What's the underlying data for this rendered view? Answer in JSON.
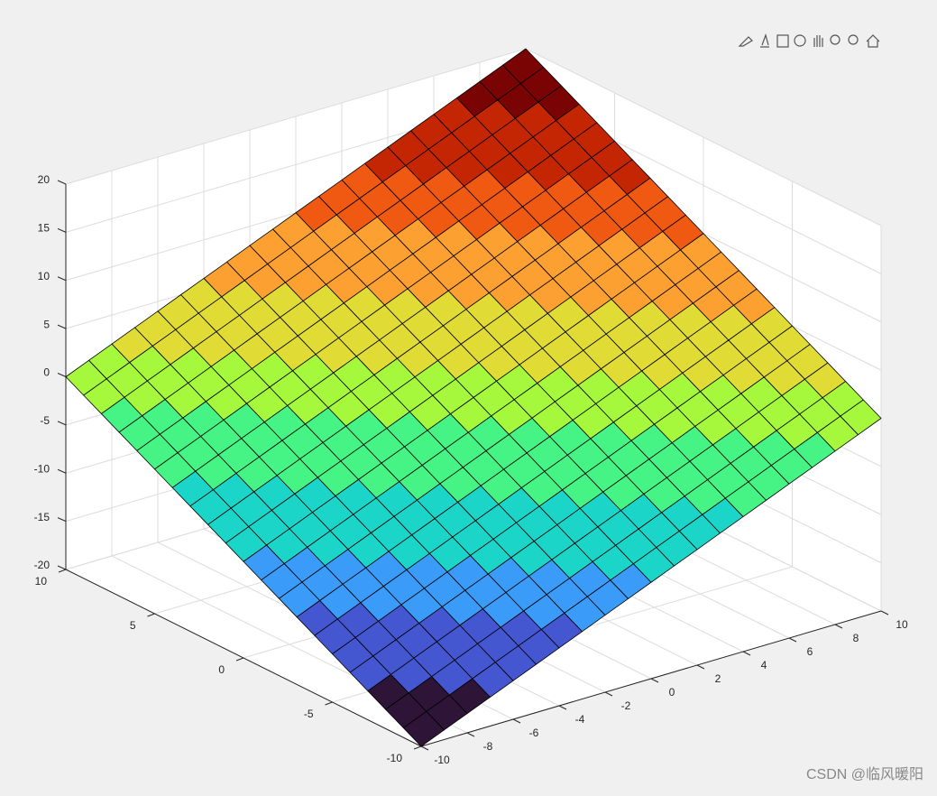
{
  "chart_data": {
    "type": "surface",
    "x": [
      -10,
      -9,
      -8,
      -7,
      -6,
      -5,
      -4,
      -3,
      -2,
      -1,
      0,
      1,
      2,
      3,
      4,
      5,
      6,
      7,
      8,
      9,
      10
    ],
    "y": [
      -10,
      -9,
      -8,
      -7,
      -6,
      -5,
      -4,
      -3,
      -2,
      -1,
      0,
      1,
      2,
      3,
      4,
      5,
      6,
      7,
      8,
      9,
      10
    ],
    "z": [
      [
        -20,
        -19,
        -18,
        -17,
        -16,
        -15,
        -14,
        -13,
        -12,
        -11,
        -10,
        -9,
        -8,
        -7,
        -6,
        -5,
        -4,
        -3,
        -2,
        -1,
        0
      ],
      [
        -19,
        -18,
        -17,
        -16,
        -15,
        -14,
        -13,
        -12,
        -11,
        -10,
        -9,
        -8,
        -7,
        -6,
        -5,
        -4,
        -3,
        -2,
        -1,
        0,
        1
      ],
      [
        -18,
        -17,
        -16,
        -15,
        -14,
        -13,
        -12,
        -11,
        -10,
        -9,
        -8,
        -7,
        -6,
        -5,
        -4,
        -3,
        -2,
        -1,
        0,
        1,
        2
      ],
      [
        -17,
        -16,
        -15,
        -14,
        -13,
        -12,
        -11,
        -10,
        -9,
        -8,
        -7,
        -6,
        -5,
        -4,
        -3,
        -2,
        -1,
        0,
        1,
        2,
        3
      ],
      [
        -16,
        -15,
        -14,
        -13,
        -12,
        -11,
        -10,
        -9,
        -8,
        -7,
        -6,
        -5,
        -4,
        -3,
        -2,
        -1,
        0,
        1,
        2,
        3,
        4
      ],
      [
        -15,
        -14,
        -13,
        -12,
        -11,
        -10,
        -9,
        -8,
        -7,
        -6,
        -5,
        -4,
        -3,
        -2,
        -1,
        0,
        1,
        2,
        3,
        4,
        5
      ],
      [
        -14,
        -13,
        -12,
        -11,
        -10,
        -9,
        -8,
        -7,
        -6,
        -5,
        -4,
        -3,
        -2,
        -1,
        0,
        1,
        2,
        3,
        4,
        5,
        6
      ],
      [
        -13,
        -12,
        -11,
        -10,
        -9,
        -8,
        -7,
        -6,
        -5,
        -4,
        -3,
        -2,
        -1,
        0,
        1,
        2,
        3,
        4,
        5,
        6,
        7
      ],
      [
        -12,
        -11,
        -10,
        -9,
        -8,
        -7,
        -6,
        -5,
        -4,
        -3,
        -2,
        -1,
        0,
        1,
        2,
        3,
        4,
        5,
        6,
        7,
        8
      ],
      [
        -11,
        -10,
        -9,
        -8,
        -7,
        -6,
        -5,
        -4,
        -3,
        -2,
        -1,
        0,
        1,
        2,
        3,
        4,
        5,
        6,
        7,
        8,
        9
      ],
      [
        -10,
        -9,
        -8,
        -7,
        -6,
        -5,
        -4,
        -3,
        -2,
        -1,
        0,
        1,
        2,
        3,
        4,
        5,
        6,
        7,
        8,
        9,
        10
      ],
      [
        -9,
        -8,
        -7,
        -6,
        -5,
        -4,
        -3,
        -2,
        -1,
        0,
        1,
        2,
        3,
        4,
        5,
        6,
        7,
        8,
        9,
        10,
        11
      ],
      [
        -8,
        -7,
        -6,
        -5,
        -4,
        -3,
        -2,
        -1,
        0,
        1,
        2,
        3,
        4,
        5,
        6,
        7,
        8,
        9,
        10,
        11,
        12
      ],
      [
        -7,
        -6,
        -5,
        -4,
        -3,
        -2,
        -1,
        0,
        1,
        2,
        3,
        4,
        5,
        6,
        7,
        8,
        9,
        10,
        11,
        12,
        13
      ],
      [
        -6,
        -5,
        -4,
        -3,
        -2,
        -1,
        0,
        1,
        2,
        3,
        4,
        5,
        6,
        7,
        8,
        9,
        10,
        11,
        12,
        13,
        14
      ],
      [
        -5,
        -4,
        -3,
        -2,
        -1,
        0,
        1,
        2,
        3,
        4,
        5,
        6,
        7,
        8,
        9,
        10,
        11,
        12,
        13,
        14,
        15
      ],
      [
        -4,
        -3,
        -2,
        -1,
        0,
        1,
        2,
        3,
        4,
        5,
        6,
        7,
        8,
        9,
        10,
        11,
        12,
        13,
        14,
        15,
        16
      ],
      [
        -3,
        -2,
        -1,
        0,
        1,
        2,
        3,
        4,
        5,
        6,
        7,
        8,
        9,
        10,
        11,
        12,
        13,
        14,
        15,
        16,
        17
      ],
      [
        -2,
        -1,
        0,
        1,
        2,
        3,
        4,
        5,
        6,
        7,
        8,
        9,
        10,
        11,
        12,
        13,
        14,
        15,
        16,
        17,
        18
      ],
      [
        -1,
        0,
        1,
        2,
        3,
        4,
        5,
        6,
        7,
        8,
        9,
        10,
        11,
        12,
        13,
        14,
        15,
        16,
        17,
        18,
        19
      ],
      [
        0,
        1,
        2,
        3,
        4,
        5,
        6,
        7,
        8,
        9,
        10,
        11,
        12,
        13,
        14,
        15,
        16,
        17,
        18,
        19,
        20
      ]
    ],
    "xlim": [
      -10,
      10
    ],
    "ylim": [
      -10,
      10
    ],
    "zlim": [
      -20,
      20
    ],
    "xticks": [
      -10,
      -8,
      -6,
      -4,
      -2,
      0,
      2,
      4,
      6,
      8,
      10
    ],
    "yticks": [
      -10,
      -5,
      0,
      5,
      10
    ],
    "zticks": [
      -20,
      -15,
      -10,
      -5,
      0,
      5,
      10,
      15,
      20
    ],
    "grid": true,
    "colormap": [
      "#2e1437",
      "#4456d0",
      "#3a9bf8",
      "#1bd5c8",
      "#46f486",
      "#a6f83c",
      "#e0dc35",
      "#fca131",
      "#ef5911",
      "#c42503",
      "#7a0403"
    ]
  },
  "watermark": "CSDN @临风暖阳"
}
